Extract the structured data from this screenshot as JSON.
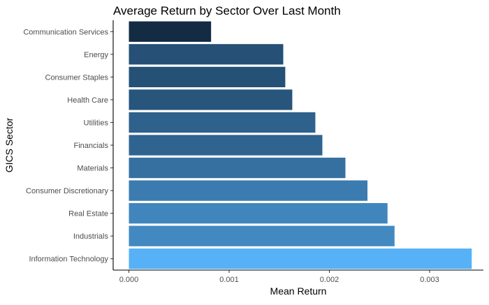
{
  "chart_data": {
    "type": "bar",
    "orientation": "horizontal",
    "title": "Average Return by Sector Over Last Month",
    "xlabel": "Mean Return",
    "ylabel": "GICS Sector",
    "categories": [
      "Communication Services",
      "Energy",
      "Consumer Staples",
      "Health Care",
      "Utilities",
      "Financials",
      "Materials",
      "Consumer Discretionary",
      "Real Estate",
      "Industrials",
      "Information Technology"
    ],
    "values": [
      0.00082,
      0.00154,
      0.00156,
      0.00163,
      0.00186,
      0.00193,
      0.00216,
      0.00238,
      0.00258,
      0.00265,
      0.00342
    ],
    "xlim": [
      0,
      0.0036
    ],
    "xticks": [
      0,
      0.001,
      0.002,
      0.003
    ],
    "xtick_labels": [
      "0.000",
      "0.001",
      "0.002",
      "0.003"
    ],
    "fill_scale": {
      "low": "#132b43",
      "high": "#56b1f7"
    },
    "grid": false,
    "legend": "none"
  }
}
